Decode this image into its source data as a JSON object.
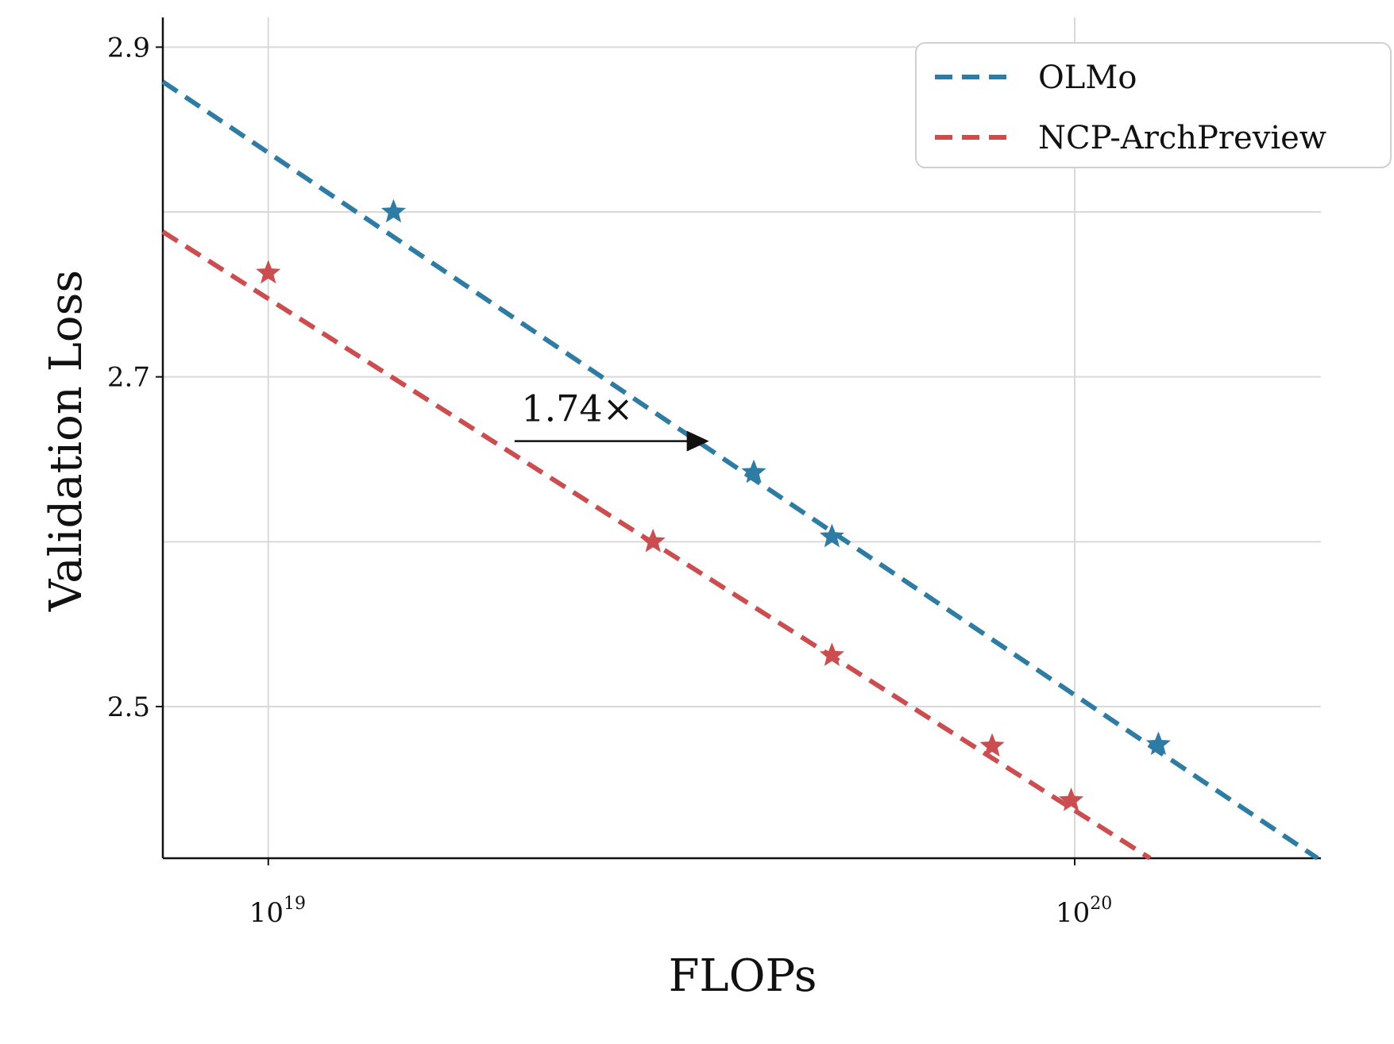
{
  "chart_data": {
    "type": "line",
    "xlabel": "FLOPs",
    "ylabel": "Validation Loss",
    "x_scale": "log",
    "xlim": [
      7.4e+18,
      2.02e+20
    ],
    "ylim": [
      2.408,
      2.918
    ],
    "x_ticks": [
      {
        "value": 1e+19,
        "base": "10",
        "exp": "19"
      },
      {
        "value": 1e+20,
        "base": "10",
        "exp": "20"
      }
    ],
    "y_ticks": [
      {
        "value": 2.5,
        "label": "2.5"
      },
      {
        "value": 2.7,
        "label": "2.7"
      },
      {
        "value": 2.9,
        "label": "2.9"
      }
    ],
    "y_minor_grid": [
      2.6,
      2.8
    ],
    "grid": true,
    "legend": {
      "position": "top-right"
    },
    "series": [
      {
        "name": "OLMo",
        "color": "#2e7ca3",
        "line": [
          [
            7.4e+18,
            2.879
          ],
          [
            2e+20,
            2.408
          ]
        ],
        "points": [
          [
            1.43e+19,
            2.8
          ],
          [
            4e+19,
            2.642
          ],
          [
            5e+19,
            2.603
          ],
          [
            1.27e+20,
            2.477
          ]
        ]
      },
      {
        "name": "NCP-ArchPreview",
        "color": "#cb4d4f",
        "line": [
          [
            7.4e+18,
            2.788
          ],
          [
            1.24e+20,
            2.408
          ]
        ],
        "points": [
          [
            1e+19,
            2.763
          ],
          [
            3e+19,
            2.6
          ],
          [
            5e+19,
            2.531
          ],
          [
            7.9e+19,
            2.476
          ],
          [
            9.9e+19,
            2.443
          ]
        ]
      }
    ],
    "annotations": [
      {
        "text": "1.74×",
        "arrow_from": [
          2.02e+19,
          2.661
        ],
        "arrow_to": [
          3.52e+19,
          2.661
        ]
      }
    ]
  }
}
